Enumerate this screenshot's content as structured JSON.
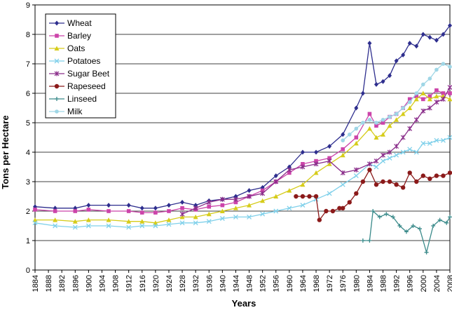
{
  "chart_data": {
    "type": "line",
    "xlabel": "Years",
    "ylabel": "Tons per Hectare",
    "xlim": [
      1884,
      2008
    ],
    "ylim": [
      0,
      9
    ],
    "yticks": [
      0,
      1,
      2,
      3,
      4,
      5,
      6,
      7,
      8,
      9
    ],
    "xticks": [
      1884,
      1888,
      1892,
      1896,
      1900,
      1904,
      1908,
      1912,
      1916,
      1920,
      1924,
      1928,
      1932,
      1936,
      1940,
      1944,
      1948,
      1952,
      1956,
      1960,
      1964,
      1968,
      1972,
      1976,
      1980,
      1984,
      1988,
      1992,
      1996,
      2000,
      2004,
      2008
    ],
    "grid": "horizontal",
    "legend": "top-left",
    "series": [
      {
        "name": "Wheat",
        "color": "#2e2e8e",
        "marker": "diamond",
        "points": [
          [
            1884,
            2.15
          ],
          [
            1890,
            2.1
          ],
          [
            1896,
            2.1
          ],
          [
            1900,
            2.2
          ],
          [
            1906,
            2.2
          ],
          [
            1912,
            2.2
          ],
          [
            1916,
            2.1
          ],
          [
            1920,
            2.1
          ],
          [
            1924,
            2.2
          ],
          [
            1928,
            2.3
          ],
          [
            1932,
            2.2
          ],
          [
            1936,
            2.35
          ],
          [
            1940,
            2.4
          ],
          [
            1944,
            2.5
          ],
          [
            1948,
            2.7
          ],
          [
            1952,
            2.8
          ],
          [
            1956,
            3.2
          ],
          [
            1960,
            3.5
          ],
          [
            1964,
            4.0
          ],
          [
            1968,
            4.0
          ],
          [
            1972,
            4.2
          ],
          [
            1976,
            4.6
          ],
          [
            1980,
            5.5
          ],
          [
            1982,
            6.0
          ],
          [
            1984,
            7.7
          ],
          [
            1986,
            6.3
          ],
          [
            1988,
            6.4
          ],
          [
            1990,
            6.6
          ],
          [
            1992,
            7.1
          ],
          [
            1994,
            7.3
          ],
          [
            1996,
            7.7
          ],
          [
            1998,
            7.6
          ],
          [
            2000,
            8.0
          ],
          [
            2002,
            7.9
          ],
          [
            2004,
            7.8
          ],
          [
            2006,
            8.0
          ],
          [
            2008,
            8.3
          ]
        ]
      },
      {
        "name": "Barley",
        "color": "#cc44aa",
        "marker": "square",
        "points": [
          [
            1884,
            2.05
          ],
          [
            1890,
            2.0
          ],
          [
            1896,
            2.0
          ],
          [
            1900,
            2.05
          ],
          [
            1906,
            2.0
          ],
          [
            1912,
            2.0
          ],
          [
            1916,
            1.95
          ],
          [
            1920,
            1.95
          ],
          [
            1924,
            2.0
          ],
          [
            1928,
            2.1
          ],
          [
            1932,
            2.05
          ],
          [
            1936,
            2.15
          ],
          [
            1940,
            2.2
          ],
          [
            1944,
            2.3
          ],
          [
            1948,
            2.5
          ],
          [
            1952,
            2.7
          ],
          [
            1956,
            3.0
          ],
          [
            1960,
            3.3
          ],
          [
            1964,
            3.6
          ],
          [
            1968,
            3.7
          ],
          [
            1972,
            3.8
          ],
          [
            1976,
            4.1
          ],
          [
            1980,
            4.5
          ],
          [
            1984,
            5.3
          ],
          [
            1986,
            4.9
          ],
          [
            1988,
            5.0
          ],
          [
            1990,
            5.2
          ],
          [
            1992,
            5.3
          ],
          [
            1994,
            5.5
          ],
          [
            1996,
            5.8
          ],
          [
            1998,
            5.9
          ],
          [
            2000,
            5.8
          ],
          [
            2002,
            5.9
          ],
          [
            2004,
            6.1
          ],
          [
            2006,
            6.0
          ],
          [
            2008,
            6.0
          ]
        ]
      },
      {
        "name": "Oats",
        "color": "#d6cc1a",
        "marker": "triangle",
        "points": [
          [
            1884,
            1.7
          ],
          [
            1890,
            1.7
          ],
          [
            1896,
            1.65
          ],
          [
            1900,
            1.7
          ],
          [
            1906,
            1.7
          ],
          [
            1912,
            1.65
          ],
          [
            1916,
            1.65
          ],
          [
            1920,
            1.6
          ],
          [
            1924,
            1.7
          ],
          [
            1928,
            1.8
          ],
          [
            1932,
            1.8
          ],
          [
            1936,
            1.9
          ],
          [
            1940,
            2.0
          ],
          [
            1944,
            2.1
          ],
          [
            1948,
            2.2
          ],
          [
            1952,
            2.35
          ],
          [
            1956,
            2.5
          ],
          [
            1960,
            2.7
          ],
          [
            1964,
            2.9
          ],
          [
            1968,
            3.3
          ],
          [
            1972,
            3.6
          ],
          [
            1976,
            3.9
          ],
          [
            1980,
            4.3
          ],
          [
            1984,
            4.8
          ],
          [
            1986,
            4.5
          ],
          [
            1988,
            4.6
          ],
          [
            1990,
            4.9
          ],
          [
            1992,
            5.1
          ],
          [
            1994,
            5.3
          ],
          [
            1996,
            5.5
          ],
          [
            1998,
            5.8
          ],
          [
            2000,
            6.0
          ],
          [
            2002,
            5.8
          ],
          [
            2004,
            5.9
          ],
          [
            2006,
            5.9
          ],
          [
            2008,
            5.8
          ]
        ]
      },
      {
        "name": "Potatoes",
        "color": "#7fd0ea",
        "marker": "x",
        "points": [
          [
            1884,
            1.6
          ],
          [
            1890,
            1.5
          ],
          [
            1896,
            1.45
          ],
          [
            1900,
            1.5
          ],
          [
            1906,
            1.5
          ],
          [
            1912,
            1.45
          ],
          [
            1916,
            1.5
          ],
          [
            1920,
            1.5
          ],
          [
            1924,
            1.55
          ],
          [
            1928,
            1.6
          ],
          [
            1932,
            1.6
          ],
          [
            1936,
            1.65
          ],
          [
            1940,
            1.75
          ],
          [
            1944,
            1.8
          ],
          [
            1948,
            1.8
          ],
          [
            1952,
            1.9
          ],
          [
            1956,
            2.0
          ],
          [
            1960,
            2.1
          ],
          [
            1964,
            2.2
          ],
          [
            1968,
            2.4
          ],
          [
            1972,
            2.6
          ],
          [
            1976,
            2.9
          ],
          [
            1980,
            3.2
          ],
          [
            1984,
            3.6
          ],
          [
            1986,
            3.5
          ],
          [
            1988,
            3.7
          ],
          [
            1990,
            3.8
          ],
          [
            1992,
            3.9
          ],
          [
            1994,
            4.0
          ],
          [
            1996,
            4.1
          ],
          [
            1998,
            4.0
          ],
          [
            2000,
            4.3
          ],
          [
            2002,
            4.3
          ],
          [
            2004,
            4.4
          ],
          [
            2006,
            4.4
          ],
          [
            2008,
            4.5
          ]
        ]
      },
      {
        "name": "Sugar Beet",
        "color": "#8a2d8a",
        "marker": "star",
        "points": [
          [
            1928,
            1.9
          ],
          [
            1932,
            2.1
          ],
          [
            1936,
            2.3
          ],
          [
            1940,
            2.4
          ],
          [
            1944,
            2.4
          ],
          [
            1948,
            2.5
          ],
          [
            1952,
            2.6
          ],
          [
            1956,
            3.0
          ],
          [
            1960,
            3.4
          ],
          [
            1964,
            3.5
          ],
          [
            1968,
            3.6
          ],
          [
            1972,
            3.7
          ],
          [
            1976,
            3.3
          ],
          [
            1980,
            3.4
          ],
          [
            1984,
            3.6
          ],
          [
            1986,
            3.7
          ],
          [
            1988,
            3.9
          ],
          [
            1990,
            4.0
          ],
          [
            1992,
            4.2
          ],
          [
            1994,
            4.5
          ],
          [
            1996,
            4.8
          ],
          [
            1998,
            5.1
          ],
          [
            2000,
            5.4
          ],
          [
            2002,
            5.5
          ],
          [
            2004,
            5.7
          ],
          [
            2006,
            5.8
          ],
          [
            2008,
            6.2
          ]
        ]
      },
      {
        "name": "Rapeseed",
        "color": "#8b1a1a",
        "marker": "circle",
        "points": [
          [
            1962,
            2.5
          ],
          [
            1964,
            2.5
          ],
          [
            1966,
            2.5
          ],
          [
            1968,
            2.5
          ],
          [
            1969,
            1.7
          ],
          [
            1971,
            2.0
          ],
          [
            1973,
            2.0
          ],
          [
            1975,
            2.1
          ],
          [
            1976,
            2.1
          ],
          [
            1978,
            2.3
          ],
          [
            1980,
            2.6
          ],
          [
            1982,
            3.0
          ],
          [
            1984,
            3.4
          ],
          [
            1986,
            2.9
          ],
          [
            1988,
            3.0
          ],
          [
            1990,
            3.0
          ],
          [
            1992,
            2.9
          ],
          [
            1994,
            2.8
          ],
          [
            1996,
            3.3
          ],
          [
            1998,
            3.0
          ],
          [
            2000,
            3.2
          ],
          [
            2002,
            3.1
          ],
          [
            2004,
            3.2
          ],
          [
            2006,
            3.2
          ],
          [
            2008,
            3.3
          ]
        ]
      },
      {
        "name": "Linseed",
        "color": "#3a8a8a",
        "marker": "plus",
        "points": [
          [
            1982,
            1.0
          ],
          [
            1984,
            1.0
          ],
          [
            1985,
            2.0
          ],
          [
            1987,
            1.8
          ],
          [
            1989,
            1.9
          ],
          [
            1991,
            1.8
          ],
          [
            1993,
            1.5
          ],
          [
            1995,
            1.3
          ],
          [
            1997,
            1.5
          ],
          [
            1999,
            1.4
          ],
          [
            2001,
            0.6
          ],
          [
            2003,
            1.5
          ],
          [
            2005,
            1.7
          ],
          [
            2007,
            1.6
          ],
          [
            2008,
            1.8
          ]
        ]
      },
      {
        "name": "Milk",
        "color": "#9fd6e6",
        "marker": "dot",
        "points": [
          [
            1976,
            4.4
          ],
          [
            1978,
            4.6
          ],
          [
            1980,
            4.8
          ],
          [
            1982,
            5.0
          ],
          [
            1984,
            5.1
          ],
          [
            1986,
            5.0
          ],
          [
            1988,
            5.1
          ],
          [
            1990,
            5.2
          ],
          [
            1992,
            5.3
          ],
          [
            1994,
            5.5
          ],
          [
            1996,
            5.7
          ],
          [
            1998,
            6.0
          ],
          [
            2000,
            6.3
          ],
          [
            2002,
            6.5
          ],
          [
            2004,
            6.8
          ],
          [
            2006,
            7.0
          ],
          [
            2008,
            6.9
          ]
        ]
      }
    ]
  }
}
